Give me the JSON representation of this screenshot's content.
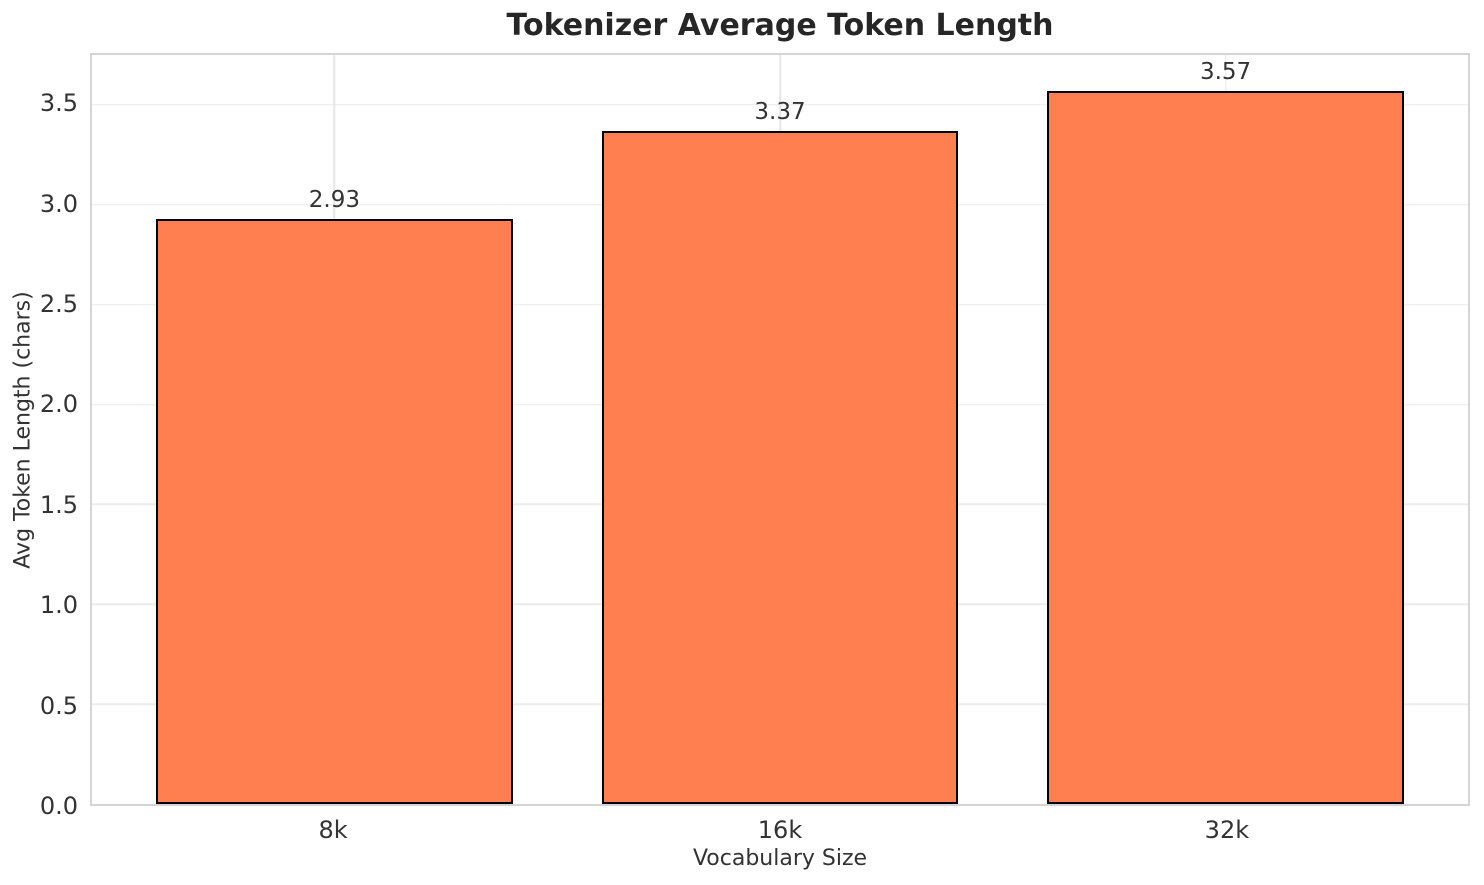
{
  "chart_data": {
    "type": "bar",
    "title": "Tokenizer Average Token Length",
    "categories": [
      "8k",
      "16k",
      "32k"
    ],
    "values": [
      2.93,
      3.37,
      3.57
    ],
    "value_labels": [
      "2.93",
      "3.37",
      "3.57"
    ],
    "xlabel": "Vocabulary Size",
    "ylabel": "Avg Token Length (chars)",
    "ylim": [
      0,
      3.75
    ],
    "yticks": [
      "0.0",
      "0.5",
      "1.0",
      "1.5",
      "2.0",
      "2.5",
      "3.0",
      "3.5"
    ],
    "grid": true,
    "legend": "none",
    "bar_color": "#FF7F50",
    "bar_edge_color": "#000000",
    "bar_width": 0.8,
    "x_margin": 0.544
  }
}
